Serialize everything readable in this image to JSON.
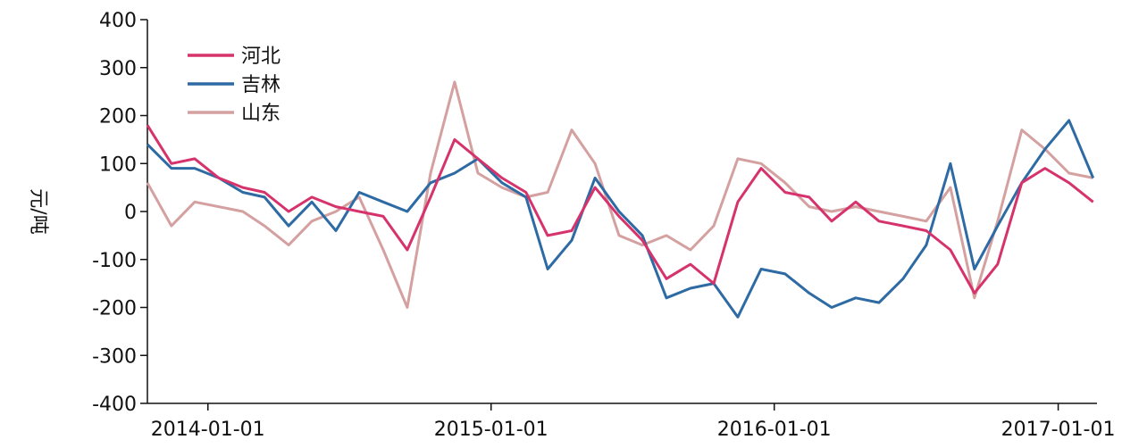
{
  "chart_data": {
    "type": "line",
    "title": "",
    "xlabel": "",
    "ylabel": "元/吨",
    "ylim": [
      -400,
      400
    ],
    "yticks": [
      400,
      300,
      200,
      100,
      0,
      -100,
      -200,
      -300,
      -400
    ],
    "xticks": [
      "2014-01-01",
      "2015-01-01",
      "2016-01-01",
      "2017-01-01"
    ],
    "xlim": [
      "2013-10-15",
      "2017-02-20"
    ],
    "grid": false,
    "legend_position": "top-left",
    "x": [
      "2013-10-15",
      "2013-11-15",
      "2013-12-15",
      "2014-01-15",
      "2014-02-15",
      "2014-03-15",
      "2014-04-15",
      "2014-05-15",
      "2014-06-15",
      "2014-07-15",
      "2014-08-15",
      "2014-09-15",
      "2014-10-15",
      "2014-11-15",
      "2014-12-15",
      "2015-01-15",
      "2015-02-15",
      "2015-03-15",
      "2015-04-15",
      "2015-05-15",
      "2015-06-15",
      "2015-07-15",
      "2015-08-15",
      "2015-09-15",
      "2015-10-15",
      "2015-11-15",
      "2015-12-15",
      "2016-01-15",
      "2016-02-15",
      "2016-03-15",
      "2016-04-15",
      "2016-05-15",
      "2016-06-15",
      "2016-07-15",
      "2016-08-15",
      "2016-09-15",
      "2016-10-15",
      "2016-11-15",
      "2016-12-15",
      "2017-01-15",
      "2017-02-15"
    ],
    "series": [
      {
        "name": "河北",
        "color": "#d6336c",
        "values": [
          180,
          100,
          110,
          70,
          50,
          40,
          0,
          30,
          10,
          0,
          -10,
          -80,
          30,
          150,
          110,
          70,
          40,
          -50,
          -40,
          50,
          -10,
          -60,
          -140,
          -110,
          -150,
          20,
          90,
          40,
          30,
          -20,
          20,
          -20,
          -30,
          -40,
          -80,
          -170,
          -110,
          60,
          90,
          60,
          20
        ]
      },
      {
        "name": "吉林",
        "color": "#2e6aa3",
        "values": [
          140,
          90,
          90,
          70,
          40,
          30,
          -30,
          20,
          -40,
          40,
          20,
          0,
          60,
          80,
          110,
          60,
          30,
          -120,
          -60,
          70,
          0,
          -50,
          -180,
          -160,
          -150,
          -220,
          -120,
          -130,
          -170,
          -200,
          -180,
          -190,
          -140,
          -70,
          100,
          -120,
          -30,
          60,
          130,
          190,
          70
        ]
      },
      {
        "name": "山东",
        "color": "#d4a0a0",
        "values": [
          60,
          -30,
          20,
          10,
          0,
          -30,
          -70,
          -20,
          0,
          30,
          -80,
          -200,
          80,
          270,
          80,
          50,
          30,
          40,
          170,
          100,
          -50,
          -70,
          -50,
          -80,
          -30,
          110,
          100,
          60,
          10,
          0,
          10,
          0,
          -10,
          -20,
          50,
          -180,
          -20,
          170,
          130,
          80,
          70
        ]
      }
    ]
  }
}
